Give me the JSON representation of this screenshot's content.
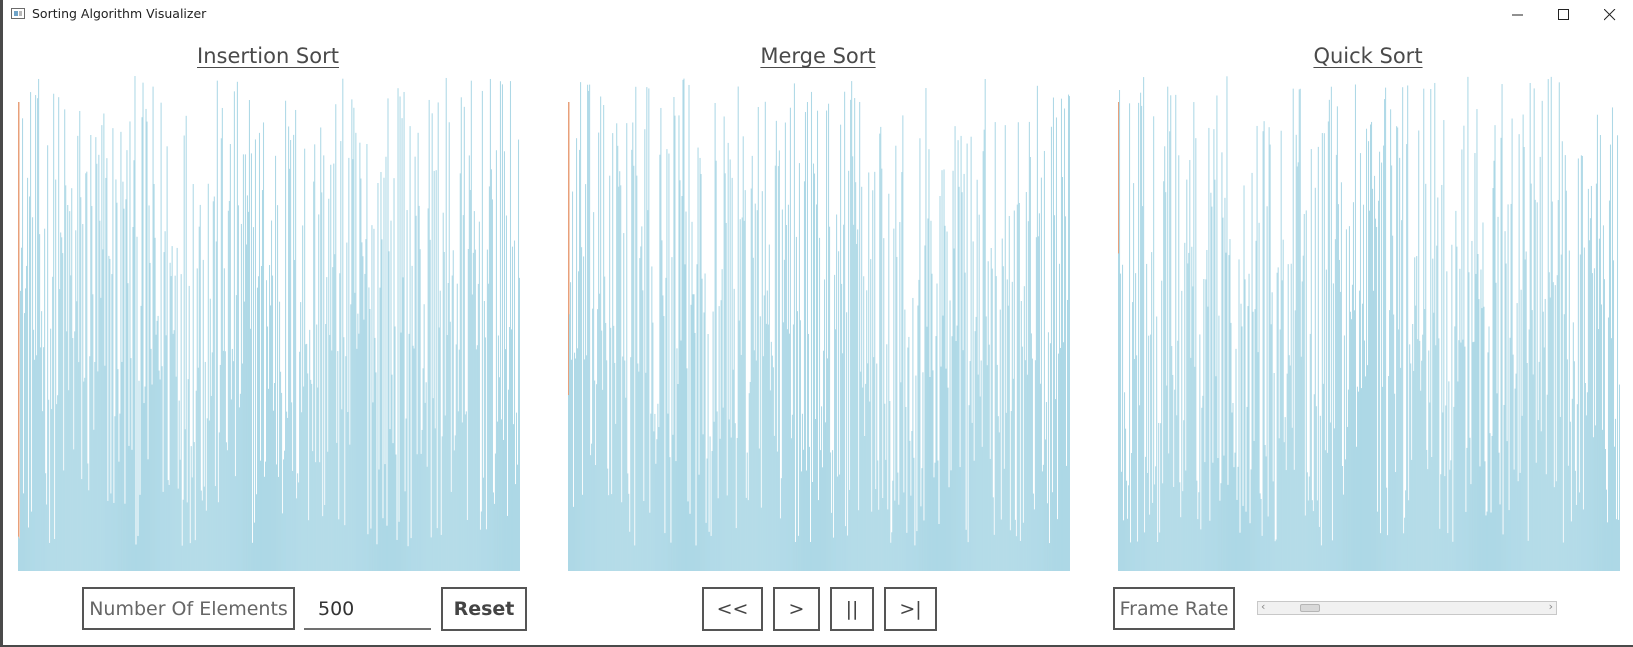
{
  "window": {
    "title": "Sorting Algorithm Visualizer"
  },
  "panels": [
    {
      "title": "Insertion Sort"
    },
    {
      "title": "Merge Sort"
    },
    {
      "title": "Quick Sort"
    }
  ],
  "controls": {
    "elements_label": "Number Of Elements",
    "elements_value": "500",
    "reset_label": "Reset",
    "back_label": "<<",
    "play_label": ">",
    "pause_label": "||",
    "step_label": ">|",
    "frame_rate_label": "Frame Rate",
    "frame_rate_level": 0.1
  },
  "colors": {
    "bar": "#add8e6",
    "accent": "#e8a07a",
    "border": "#555555"
  },
  "icons": [
    "app-icon",
    "minimize-icon",
    "maximize-icon",
    "close-icon",
    "scroll-left-arrow-icon",
    "scroll-right-arrow-icon"
  ],
  "element_count": 500
}
